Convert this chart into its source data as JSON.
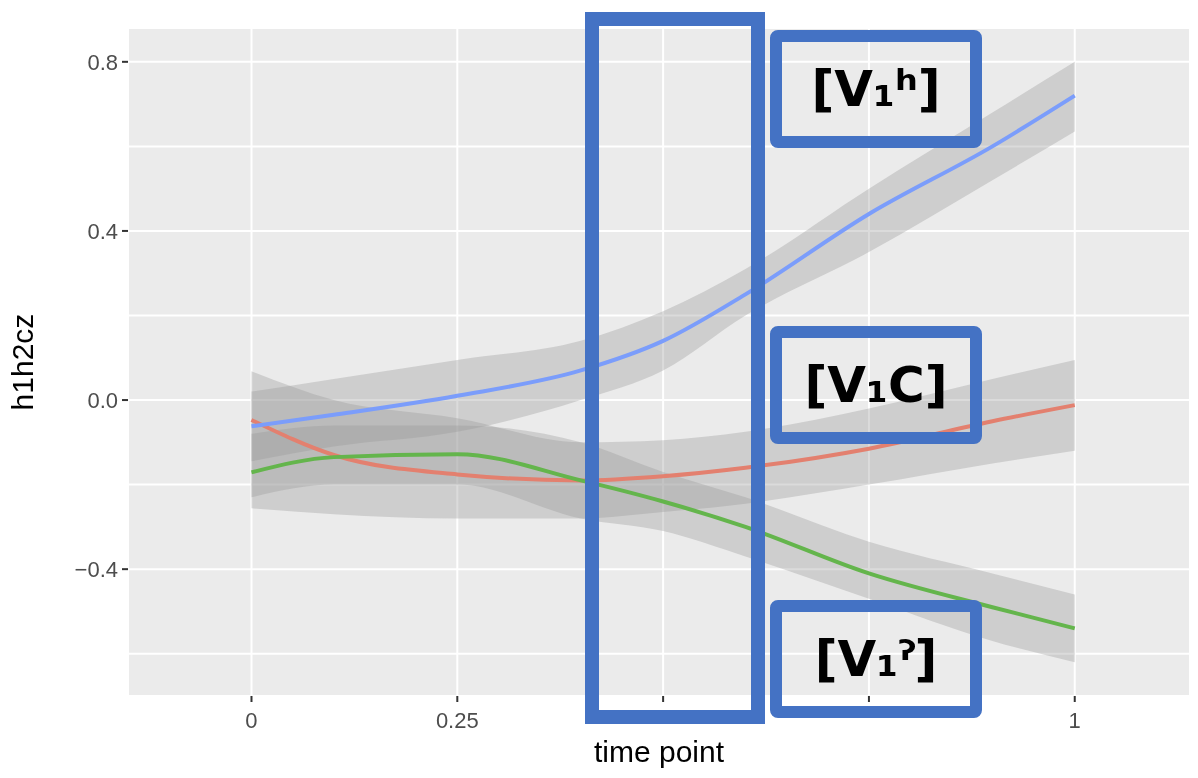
{
  "chart_data": {
    "type": "line",
    "xlabel": "time point",
    "ylabel": "h1h2cz",
    "x": [
      0,
      0.1,
      0.25,
      0.4,
      0.5,
      0.6,
      0.75,
      0.9,
      1
    ],
    "series": [
      {
        "color": "#e3806f",
        "values": [
          -0.047,
          -0.13,
          -0.176,
          -0.19,
          -0.18,
          -0.16,
          -0.115,
          -0.05,
          -0.012
        ],
        "lower": [
          -0.256,
          -0.27,
          -0.28,
          -0.28,
          -0.265,
          -0.245,
          -0.2,
          -0.15,
          -0.12
        ],
        "upper": [
          0.068,
          0.0,
          -0.043,
          -0.1,
          -0.095,
          -0.075,
          -0.02,
          0.05,
          0.095
        ]
      },
      {
        "color": "#64b54c",
        "values": [
          -0.171,
          -0.135,
          -0.128,
          -0.19,
          -0.24,
          -0.3,
          -0.41,
          -0.49,
          -0.54
        ],
        "lower": [
          -0.23,
          -0.2,
          -0.2,
          -0.28,
          -0.31,
          -0.37,
          -0.47,
          -0.57,
          -0.62
        ],
        "upper": [
          -0.08,
          -0.06,
          -0.06,
          -0.1,
          -0.17,
          -0.23,
          -0.335,
          -0.41,
          -0.46
        ]
      },
      {
        "color": "#7b9dfb",
        "values": [
          -0.062,
          -0.035,
          0.01,
          0.07,
          0.14,
          0.25,
          0.44,
          0.6,
          0.72
        ],
        "lower": [
          -0.145,
          -0.11,
          -0.075,
          0.0,
          0.07,
          0.2,
          0.35,
          0.52,
          0.635
        ],
        "upper": [
          0.02,
          0.05,
          0.095,
          0.14,
          0.21,
          0.31,
          0.5,
          0.68,
          0.8
        ]
      }
    ],
    "xlim": [
      -0.15,
      1.14
    ],
    "ylim": [
      -0.7,
      0.88
    ],
    "xticks": [
      0,
      0.25,
      {
        "value": 0.5,
        "label": null
      },
      {
        "value": 0.75,
        "label": null
      },
      1
    ],
    "yticks": [
      {
        "value": -0.6,
        "label": null
      },
      {
        "value": -0.4,
        "label": "−0.4"
      },
      {
        "value": -0.2,
        "label": null
      },
      {
        "value": 0,
        "label": "0.0"
      },
      {
        "value": 0.2,
        "label": null
      },
      0.4,
      {
        "value": 0.6,
        "label": null
      },
      0.8
    ],
    "grid": true,
    "annotations": [
      "[V₁ʰ]",
      "[V₁C]",
      "[V₁ˀ]"
    ]
  }
}
